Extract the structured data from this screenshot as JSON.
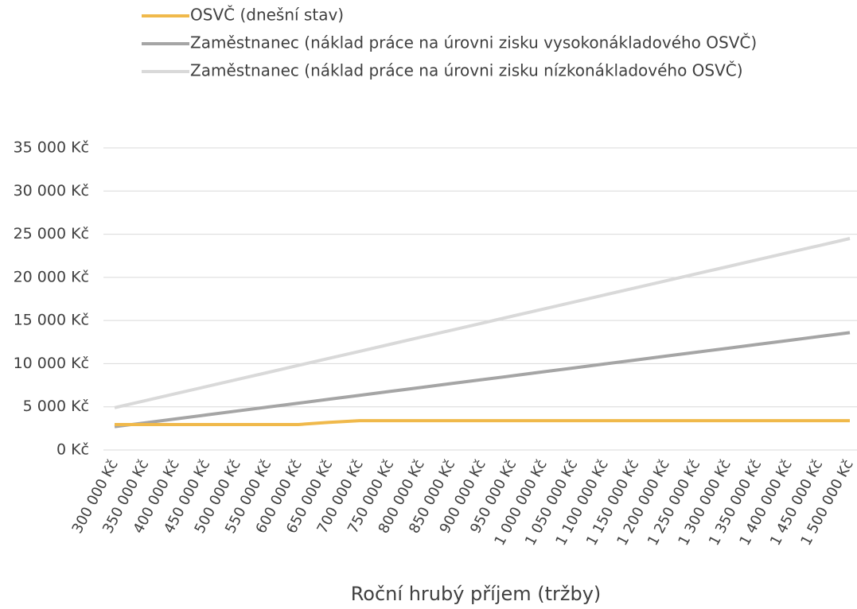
{
  "chart_data": {
    "type": "line",
    "x_label": "Roční hrubý příjem (tržby)",
    "categories": [
      "300 000 Kč",
      "350 000 Kč",
      "400 000 Kč",
      "450 000 Kč",
      "500 000 Kč",
      "550 000 Kč",
      "600 000 Kč",
      "650 000 Kč",
      "700 000 Kč",
      "750 000 Kč",
      "800 000 Kč",
      "850 000 Kč",
      "900 000 Kč",
      "950 000 Kč",
      "1 000 000 Kč",
      "1 050 000 Kč",
      "1 100 000 Kč",
      "1 150 000 Kč",
      "1 200 000 Kč",
      "1 250 000 Kč",
      "1 300 000 Kč",
      "1 350 000 Kč",
      "1 400 000 Kč",
      "1 450 000 Kč",
      "1 500 000 Kč"
    ],
    "series": [
      {
        "name": "OSVČ (dnešní stav)",
        "color": "#f0b94b",
        "values": [
          2950,
          2950,
          2950,
          2950,
          2950,
          2950,
          2950,
          3200,
          3400,
          3400,
          3400,
          3400,
          3400,
          3400,
          3400,
          3400,
          3400,
          3400,
          3400,
          3400,
          3400,
          3400,
          3400,
          3400,
          3400
        ]
      },
      {
        "name": "Zaměstnanec (náklad práce na úrovni zisku vysokonákladového OSVČ)",
        "color": "#a5a5a5",
        "values": [
          2700,
          3150,
          3600,
          4060,
          4520,
          4970,
          5420,
          5880,
          6330,
          6790,
          7240,
          7700,
          8150,
          8600,
          9060,
          9510,
          9970,
          10420,
          10880,
          11330,
          11780,
          12240,
          12690,
          13150,
          13600
        ]
      },
      {
        "name": "Zaměstnanec (náklad práce na úrovni zisku nízkonákladového OSVČ)",
        "color": "#d9d9d9",
        "values": [
          4900,
          5720,
          6530,
          7350,
          8170,
          8980,
          9800,
          10620,
          11430,
          12250,
          13070,
          13880,
          14700,
          15520,
          16330,
          17150,
          17970,
          18780,
          19600,
          20420,
          21230,
          22050,
          22870,
          23680,
          24500
        ]
      }
    ],
    "ylim": [
      0,
      35000
    ],
    "yticks": [
      {
        "value": 0,
        "label": "0 Kč"
      },
      {
        "value": 5000,
        "label": "5 000 Kč"
      },
      {
        "value": 10000,
        "label": "10 000 Kč"
      },
      {
        "value": 15000,
        "label": "15 000 Kč"
      },
      {
        "value": 20000,
        "label": "20 000 Kč"
      },
      {
        "value": 25000,
        "label": "25 000 Kč"
      },
      {
        "value": 30000,
        "label": "30 000 Kč"
      },
      {
        "value": 35000,
        "label": "35 000 Kč"
      }
    ],
    "grid": true,
    "legend": "top"
  }
}
